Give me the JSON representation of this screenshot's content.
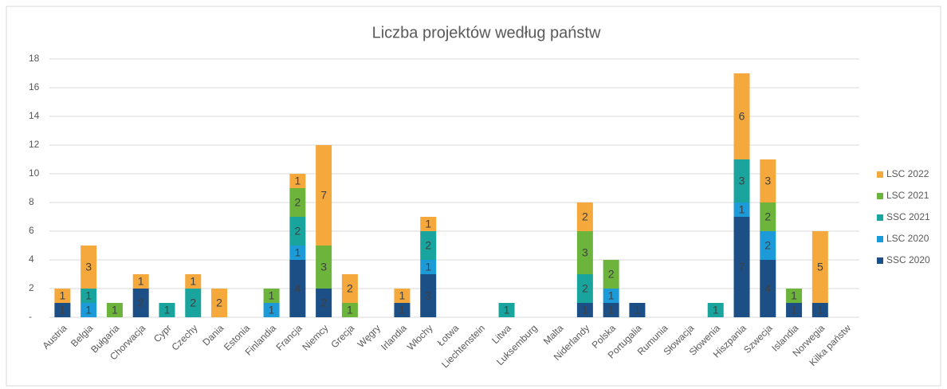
{
  "chart_data": {
    "type": "stacked_bar",
    "title": "Liczba projektów według państw",
    "categories": [
      "Austria",
      "Belgia",
      "Bułgaria",
      "Chorwacja",
      "Cypr",
      "Czechy",
      "Dania",
      "Estonia",
      "Finlandia",
      "Francja",
      "Niemcy",
      "Grecja",
      "Węgry",
      "Irlandia",
      "Włochy",
      "Łotwa",
      "Liechtenstein",
      "Litwa",
      "Luksemburg",
      "Malta",
      "Niderlandy",
      "Polska",
      "Portugalia",
      "Rumunia",
      "Słowacja",
      "Słowenia",
      "Hiszpania",
      "Szwecja",
      "Islandia",
      "Norwegia",
      "Kilka państw"
    ],
    "series": [
      {
        "name": "SSC 2020",
        "color": "#1c4f86",
        "values": [
          1,
          0,
          0,
          2,
          0,
          0,
          0,
          0,
          0,
          4,
          2,
          0,
          0,
          1,
          3,
          0,
          0,
          0,
          0,
          0,
          1,
          1,
          1,
          0,
          0,
          0,
          7,
          4,
          1,
          1,
          0
        ]
      },
      {
        "name": "LSC 2020",
        "color": "#1d9ad8",
        "values": [
          0,
          1,
          0,
          0,
          0,
          0,
          0,
          0,
          1,
          1,
          0,
          0,
          0,
          0,
          1,
          0,
          0,
          0,
          0,
          0,
          0,
          1,
          0,
          0,
          0,
          0,
          1,
          2,
          0,
          0,
          0
        ]
      },
      {
        "name": "SSC 2021",
        "color": "#19a59e",
        "values": [
          0,
          1,
          0,
          0,
          1,
          2,
          0,
          0,
          0,
          2,
          0,
          0,
          0,
          0,
          2,
          0,
          0,
          1,
          0,
          0,
          2,
          0,
          0,
          0,
          0,
          1,
          3,
          0,
          0,
          0,
          0
        ]
      },
      {
        "name": "LSC 2021",
        "color": "#6cb43c",
        "values": [
          0,
          0,
          1,
          0,
          0,
          0,
          0,
          0,
          1,
          2,
          3,
          1,
          0,
          0,
          0,
          0,
          0,
          0,
          0,
          0,
          3,
          2,
          0,
          0,
          0,
          0,
          0,
          2,
          1,
          0,
          0
        ]
      },
      {
        "name": "LSC 2022",
        "color": "#f5a93d",
        "values": [
          1,
          3,
          0,
          1,
          0,
          1,
          2,
          0,
          0,
          1,
          7,
          2,
          0,
          1,
          1,
          0,
          0,
          0,
          0,
          0,
          2,
          0,
          0,
          0,
          0,
          0,
          6,
          3,
          0,
          5,
          0
        ]
      }
    ],
    "ylim": [
      0,
      18
    ],
    "yticks": [
      {
        "value": 0,
        "label": "-"
      },
      2,
      4,
      6,
      8,
      10,
      12,
      14,
      16,
      18
    ],
    "grid": true,
    "legend": "right"
  }
}
